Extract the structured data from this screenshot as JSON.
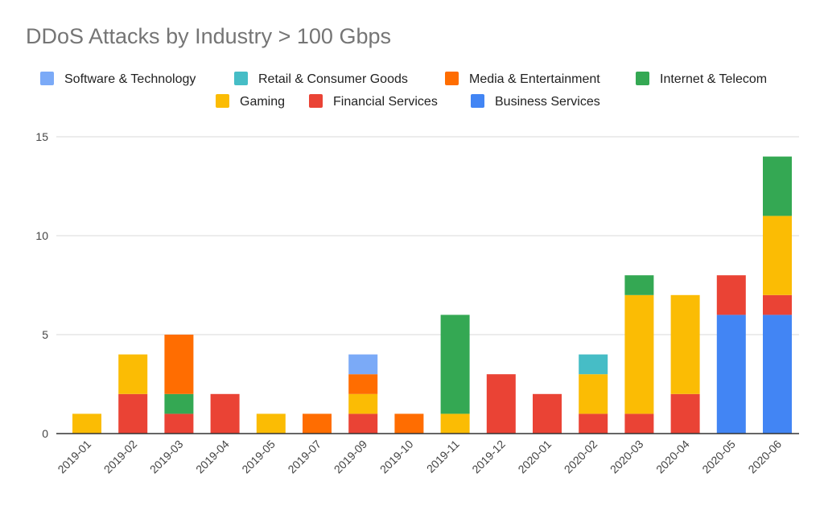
{
  "chart_data": {
    "type": "bar",
    "stacked": true,
    "title": "DDoS Attacks by Industry > 100 Gbps",
    "xlabel": "",
    "ylabel": "",
    "ylim": [
      0,
      15
    ],
    "yticks": [
      "0",
      "5",
      "10",
      "15"
    ],
    "grid": true,
    "legend_position": "top",
    "categories": [
      "2019-01",
      "2019-02",
      "2019-03",
      "2019-04",
      "2019-05",
      "2019-07",
      "2019-09",
      "2019-10",
      "2019-11",
      "2019-12",
      "2020-01",
      "2020-02",
      "2020-03",
      "2020-04",
      "2020-05",
      "2020-06"
    ],
    "series": [
      {
        "name": "Software & Technology",
        "color": "#7baaf7",
        "values": [
          0,
          0,
          0,
          0,
          0,
          0,
          1,
          0,
          0,
          0,
          0,
          0,
          0,
          0,
          0,
          0
        ]
      },
      {
        "name": "Retail & Consumer Goods",
        "color": "#46bdc6",
        "values": [
          0,
          0,
          0,
          0,
          0,
          0,
          0,
          0,
          0,
          0,
          0,
          1,
          0,
          0,
          0,
          0
        ]
      },
      {
        "name": "Media & Entertainment",
        "color": "#ff6d01",
        "values": [
          0,
          0,
          3,
          0,
          0,
          1,
          1,
          1,
          0,
          0,
          0,
          0,
          0,
          0,
          0,
          0
        ]
      },
      {
        "name": "Internet & Telecom",
        "color": "#34a853",
        "values": [
          0,
          0,
          1,
          0,
          0,
          0,
          0,
          0,
          5,
          0,
          0,
          0,
          1,
          0,
          0,
          3
        ]
      },
      {
        "name": "Gaming",
        "color": "#fbbc04",
        "values": [
          1,
          2,
          0,
          0,
          1,
          0,
          1,
          0,
          1,
          0,
          0,
          2,
          6,
          5,
          0,
          4
        ]
      },
      {
        "name": "Financial Services",
        "color": "#ea4335",
        "values": [
          0,
          2,
          1,
          2,
          0,
          0,
          1,
          0,
          0,
          3,
          2,
          1,
          1,
          2,
          2,
          1
        ]
      },
      {
        "name": "Business Services",
        "color": "#4285f4",
        "values": [
          0,
          0,
          0,
          0,
          0,
          0,
          0,
          0,
          0,
          0,
          0,
          0,
          0,
          0,
          6,
          6
        ]
      }
    ],
    "stack_order_bottom_to_top": [
      "Business Services",
      "Financial Services",
      "Gaming",
      "Internet & Telecom",
      "Media & Entertainment",
      "Retail & Consumer Goods",
      "Software & Technology"
    ]
  }
}
